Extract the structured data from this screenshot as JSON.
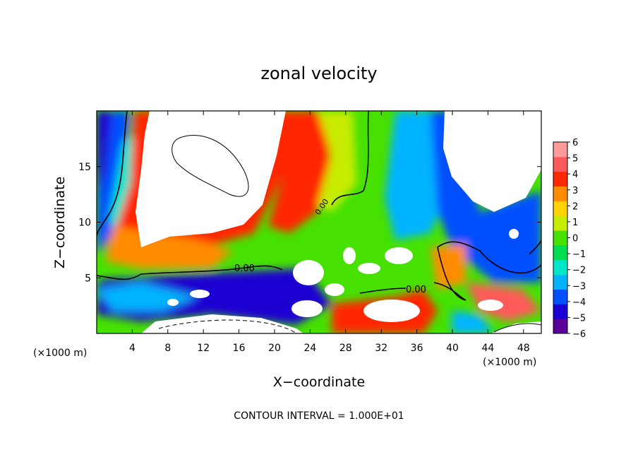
{
  "chart_data": {
    "type": "heatmap",
    "title": "zonal velocity",
    "xlabel": "X−coordinate",
    "ylabel": "Z−coordinate",
    "x_unit_left": "(×1000 m)",
    "x_unit_right": "(×1000 m)",
    "footnote": "CONTOUR INTERVAL = 1.000E+01",
    "xlim": [
      0,
      50
    ],
    "ylim": [
      0,
      20
    ],
    "x_ticks": [
      4,
      8,
      12,
      16,
      20,
      24,
      28,
      32,
      36,
      40,
      44,
      48
    ],
    "y_ticks": [
      5,
      10,
      15
    ],
    "contour_labels": [
      "0.00",
      "0.00",
      "0.00"
    ],
    "colorbar": {
      "min": -6,
      "max": 6,
      "ticks": [
        "6",
        "5",
        "4",
        "3",
        "2",
        "1",
        "0",
        "−1",
        "−2",
        "−3",
        "−4",
        "−5",
        "−6"
      ],
      "colors": [
        "#5a009a",
        "#1a00d2",
        "#0050ff",
        "#00b4ff",
        "#00e6c8",
        "#00dc50",
        "#46e100",
        "#c8ec00",
        "#ffd200",
        "#ff8c00",
        "#ff2800",
        "#ff5a5a",
        "#ff9a9a"
      ]
    }
  }
}
